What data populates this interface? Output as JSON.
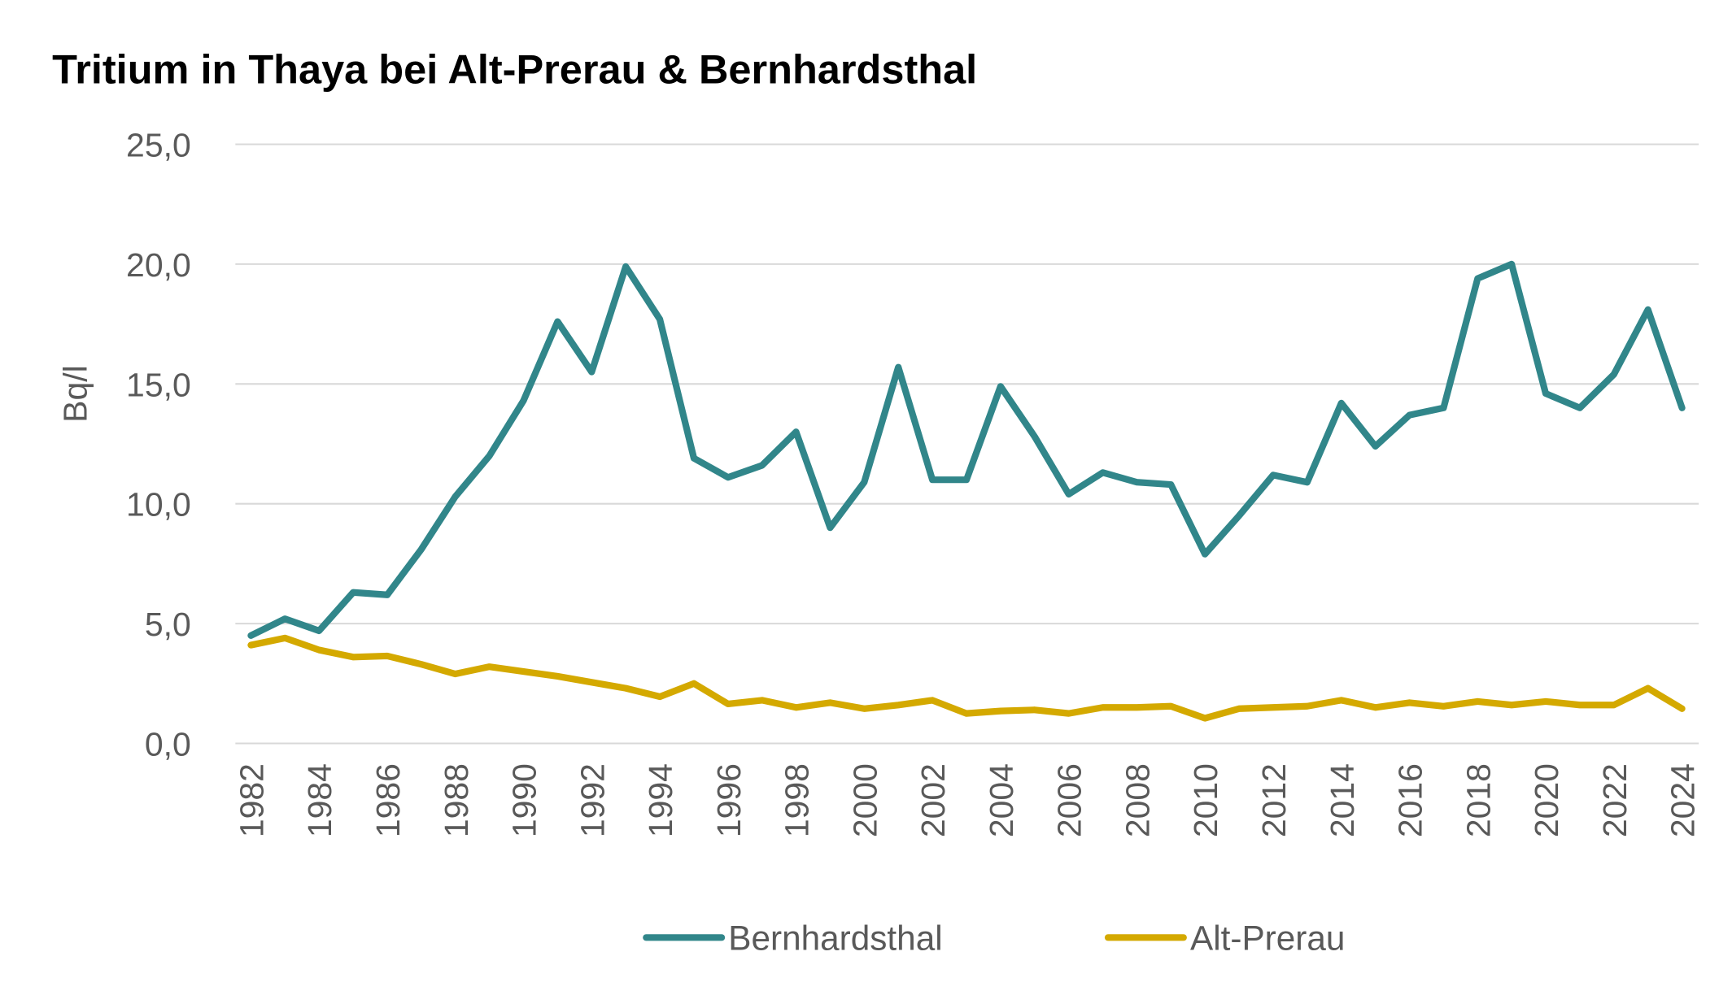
{
  "chart_data": {
    "type": "line",
    "title": "Tritium in Thaya bei Alt-Prerau & Bernhardsthal",
    "xlabel": "",
    "ylabel": "Bq/l",
    "ylim": [
      0,
      25
    ],
    "yticks": [
      "0,0",
      "5,0",
      "10,0",
      "15,0",
      "20,0",
      "25,0"
    ],
    "ytick_values": [
      0,
      5,
      10,
      15,
      20,
      25
    ],
    "grid": "horizontal",
    "legend": "bottom",
    "x": [
      1982,
      1983,
      1984,
      1985,
      1986,
      1987,
      1988,
      1989,
      1990,
      1991,
      1992,
      1993,
      1994,
      1995,
      1996,
      1997,
      1998,
      1999,
      2000,
      2001,
      2002,
      2003,
      2004,
      2005,
      2006,
      2007,
      2008,
      2009,
      2010,
      2011,
      2012,
      2013,
      2014,
      2015,
      2016,
      2017,
      2018,
      2019,
      2020,
      2021,
      2022,
      2023,
      2024
    ],
    "xtick_labels": [
      "1982",
      "1984",
      "1986",
      "1988",
      "1990",
      "1992",
      "1994",
      "1996",
      "1998",
      "2000",
      "2002",
      "2004",
      "2006",
      "2008",
      "2010",
      "2012",
      "2014",
      "2016",
      "2018",
      "2020",
      "2022",
      "2024"
    ],
    "series": [
      {
        "name": "Bernhardsthal",
        "color": "#31868A",
        "values": [
          4.5,
          5.2,
          4.7,
          6.3,
          6.2,
          8.1,
          10.3,
          12.0,
          14.3,
          17.6,
          15.5,
          19.9,
          17.7,
          11.9,
          11.1,
          11.6,
          13.0,
          9.0,
          10.9,
          15.7,
          11.0,
          11.0,
          14.9,
          12.8,
          10.4,
          11.3,
          10.9,
          10.8,
          7.9,
          9.5,
          11.2,
          10.9,
          14.2,
          12.4,
          13.7,
          14.0,
          19.4,
          20.0,
          14.6,
          14.0,
          15.4,
          18.1,
          14.0
        ]
      },
      {
        "name": "Alt-Prerau",
        "color": "#D4A900",
        "values": [
          4.1,
          4.4,
          3.9,
          3.6,
          3.65,
          3.3,
          2.9,
          3.2,
          3.0,
          2.8,
          2.55,
          2.3,
          1.95,
          2.5,
          1.65,
          1.8,
          1.5,
          1.7,
          1.45,
          1.6,
          1.8,
          1.25,
          1.35,
          1.4,
          1.25,
          1.5,
          1.5,
          1.55,
          1.05,
          1.45,
          1.5,
          1.55,
          1.8,
          1.5,
          1.7,
          1.55,
          1.75,
          1.6,
          1.75,
          1.6,
          1.6,
          2.3,
          1.45
        ]
      }
    ]
  }
}
